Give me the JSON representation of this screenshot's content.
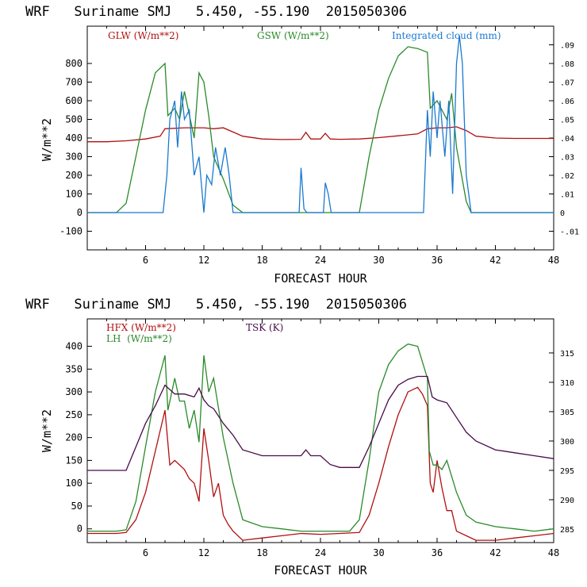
{
  "chart_data": [
    {
      "type": "line",
      "title": "WRF   Suriname SMJ   5.450, -55.190  2015050306",
      "xlabel": "FORECAST HOUR",
      "ylabel": "W/m**2",
      "xlim": [
        0,
        48
      ],
      "ylim": [
        -200,
        1000
      ],
      "y2lim": [
        -0.02,
        0.1
      ],
      "xticks": [
        "6",
        "12",
        "18",
        "24",
        "30",
        "36",
        "42",
        "48"
      ],
      "yticks": [
        "800",
        "700",
        "600",
        "500",
        "400",
        "300",
        "200",
        "100",
        "0",
        "-100"
      ],
      "y2ticks": [
        ".09",
        ".08",
        ".07",
        ".06",
        ".05",
        ".04",
        ".03",
        ".02",
        ".01",
        "0",
        "-.01"
      ],
      "series": [
        {
          "name": "GLW (W/m**2)",
          "color": "#b01010",
          "axis": "left",
          "x": [
            0,
            2,
            4,
            6,
            7.5,
            8,
            10,
            12,
            13,
            14,
            16,
            18,
            20,
            22,
            22.5,
            23,
            24,
            24.5,
            25,
            26,
            28,
            30,
            32,
            34,
            35,
            36,
            37,
            38,
            39,
            40,
            42,
            44,
            46,
            48
          ],
          "y": [
            380,
            380,
            385,
            395,
            410,
            450,
            455,
            455,
            450,
            455,
            410,
            395,
            392,
            393,
            430,
            395,
            395,
            425,
            395,
            393,
            395,
            402,
            412,
            422,
            450,
            455,
            455,
            460,
            440,
            410,
            400,
            398,
            398,
            398
          ]
        },
        {
          "name": "GSW (W/m**2)",
          "color": "#2a8a2a",
          "axis": "left",
          "x": [
            0,
            3,
            4,
            5,
            6,
            7,
            8,
            8.3,
            9,
            9.5,
            10,
            11,
            11.5,
            12,
            12.5,
            13,
            14,
            15,
            16,
            28,
            29,
            30,
            31,
            32,
            33,
            34,
            35,
            35.3,
            36,
            37,
            37.5,
            38,
            39,
            39.5,
            40,
            48
          ],
          "y": [
            0,
            0,
            50,
            300,
            550,
            750,
            800,
            520,
            560,
            500,
            650,
            400,
            750,
            700,
            520,
            300,
            180,
            40,
            0,
            0,
            300,
            550,
            720,
            840,
            890,
            880,
            860,
            560,
            600,
            500,
            640,
            350,
            60,
            0,
            0,
            0
          ]
        },
        {
          "name": "Integrated cloud (mm)",
          "color": "#1a7ad0",
          "axis": "right",
          "x": [
            0,
            7.8,
            8.2,
            8.5,
            9,
            9.3,
            9.7,
            10,
            10.5,
            11,
            11.5,
            12,
            12.3,
            12.8,
            13.2,
            13.7,
            14.2,
            14.6,
            15,
            21.8,
            22,
            22.3,
            22.6,
            24.3,
            24.5,
            24.8,
            25.1,
            34.6,
            35,
            35.3,
            35.6,
            36,
            36.3,
            36.8,
            37.2,
            37.6,
            38,
            38.3,
            38.6,
            39,
            39.5,
            40,
            48
          ],
          "y": [
            0,
            0,
            0.02,
            0.05,
            0.06,
            0.035,
            0.065,
            0.05,
            0.055,
            0.02,
            0.03,
            0,
            0.02,
            0.015,
            0.035,
            0.02,
            0.035,
            0.02,
            0,
            0,
            0.024,
            0.002,
            0,
            0,
            0.016,
            0.01,
            0,
            0,
            0.055,
            0.03,
            0.065,
            0.04,
            0.06,
            0.03,
            0.06,
            0.01,
            0.08,
            0.095,
            0.08,
            0.02,
            0,
            0,
            0
          ]
        }
      ],
      "legend": [
        {
          "label": "GLW (W/m**2)",
          "color": "#b01010"
        },
        {
          "label": "GSW (W/m**2)",
          "color": "#2a8a2a"
        },
        {
          "label": "Integrated cloud (mm)",
          "color": "#1a7ad0"
        }
      ]
    },
    {
      "type": "line",
      "title": "WRF   Suriname SMJ   5.450, -55.190  2015050306",
      "xlabel": "FORECAST HOUR",
      "ylabel": "W/m**2",
      "xlim": [
        0,
        48
      ],
      "ylim": [
        -30,
        460
      ],
      "y2lim": [
        282.7,
        320.8
      ],
      "xticks": [
        "6",
        "12",
        "18",
        "24",
        "30",
        "36",
        "42",
        "48"
      ],
      "yticks": [
        "400",
        "350",
        "300",
        "250",
        "200",
        "150",
        "100",
        "50",
        "0"
      ],
      "y2ticks": [
        "315",
        "310",
        "305",
        "300",
        "295",
        "290",
        "285"
      ],
      "series": [
        {
          "name": "HFX (W/m**2)",
          "color": "#b01010",
          "axis": "left",
          "x": [
            0,
            3,
            4,
            5,
            6,
            7,
            8,
            8.5,
            9,
            10,
            10.5,
            11,
            11.5,
            12,
            12.5,
            13,
            13.5,
            14,
            14.5,
            15,
            16,
            18,
            20,
            22,
            24,
            26,
            28,
            29,
            30,
            31,
            32,
            33,
            34,
            34.5,
            35,
            35.3,
            35.6,
            36,
            36.5,
            37,
            37.5,
            38,
            39,
            40,
            42,
            44,
            46,
            48
          ],
          "y": [
            -10,
            -10,
            -8,
            20,
            80,
            170,
            260,
            140,
            150,
            130,
            110,
            100,
            60,
            220,
            150,
            70,
            100,
            30,
            10,
            -5,
            -25,
            -20,
            -15,
            -10,
            -12,
            -10,
            -8,
            30,
            100,
            180,
            250,
            300,
            310,
            295,
            270,
            100,
            80,
            150,
            90,
            40,
            40,
            -5,
            -15,
            -25,
            -25,
            -20,
            -15,
            -10
          ]
        },
        {
          "name": "LH (W/m**2)",
          "color": "#2a8a2a",
          "axis": "left",
          "x": [
            0,
            3,
            4,
            5,
            6,
            7,
            8,
            8.3,
            9,
            9.5,
            10,
            10.5,
            11,
            11.5,
            12,
            12.5,
            13,
            14,
            15,
            16,
            18,
            20,
            22,
            24,
            26,
            27,
            28,
            29,
            30,
            31,
            32,
            33,
            34,
            35,
            35.2,
            35.6,
            36,
            36.5,
            37,
            38,
            39,
            40,
            42,
            44,
            46,
            48
          ],
          "y": [
            -5,
            -5,
            -2,
            60,
            180,
            300,
            380,
            260,
            330,
            280,
            280,
            220,
            260,
            190,
            380,
            300,
            330,
            200,
            100,
            20,
            5,
            0,
            -5,
            -5,
            -5,
            -5,
            20,
            150,
            300,
            360,
            390,
            405,
            400,
            330,
            170,
            140,
            140,
            130,
            150,
            80,
            30,
            15,
            5,
            0,
            -5,
            0
          ]
        },
        {
          "name": "TSK (K)",
          "color": "#4a0a4a",
          "axis": "right",
          "x": [
            0,
            2,
            4,
            5,
            6,
            7,
            8,
            9,
            10,
            11,
            11.5,
            12,
            12.5,
            13,
            14,
            15,
            16,
            18,
            20,
            21,
            22,
            22.5,
            23,
            24,
            25,
            26,
            28,
            29,
            30,
            31,
            32,
            33,
            34,
            35,
            35.5,
            36,
            37,
            38,
            39,
            40,
            42,
            44,
            46,
            48
          ],
          "y": [
            295,
            295,
            295,
            299,
            303,
            306,
            309.5,
            308,
            308,
            307.5,
            309,
            307,
            306,
            305.5,
            303,
            301,
            298.5,
            297.5,
            297.5,
            297.5,
            297.5,
            298.5,
            297.5,
            297.5,
            296,
            295.5,
            295.5,
            299,
            303,
            307,
            309.5,
            310.5,
            311,
            311,
            307.5,
            307,
            306.5,
            304,
            301.5,
            300,
            298.5,
            298,
            297.5,
            297
          ]
        }
      ],
      "legend": [
        {
          "label": "HFX (W/m**2)",
          "color": "#b01010"
        },
        {
          "label": "LH  (W/m**2)",
          "color": "#2a8a2a"
        },
        {
          "label": "TSK (K)",
          "color": "#4a0a4a"
        }
      ]
    }
  ]
}
